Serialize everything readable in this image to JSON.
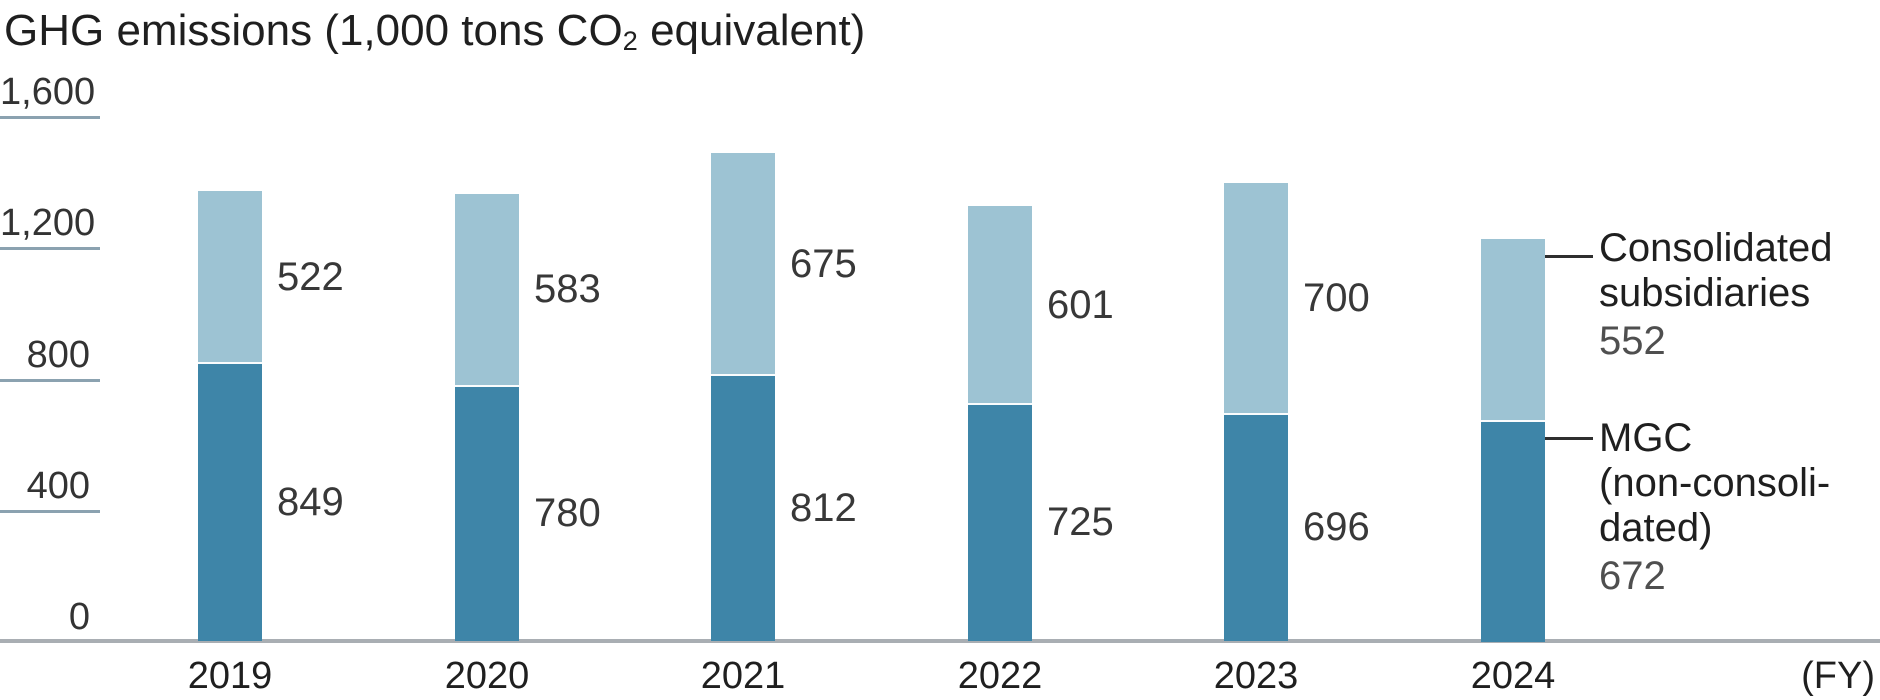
{
  "title": {
    "prefix": "GHG emissions (1,000 tons CO",
    "sub": "2",
    "suffix": " equivalent)"
  },
  "y_axis": {
    "ticks": [
      {
        "label": "1,600",
        "value": 1600
      },
      {
        "label": "1,200",
        "value": 1200
      },
      {
        "label": "800",
        "value": 800
      },
      {
        "label": "400",
        "value": 400
      },
      {
        "label": "0",
        "value": 0
      }
    ]
  },
  "x_axis": {
    "categories": [
      "2019",
      "2020",
      "2021",
      "2022",
      "2023",
      "2024"
    ],
    "unit_label": "(FY)"
  },
  "chart_data": {
    "type": "bar",
    "stacked": true,
    "title": "GHG emissions (1,000 tons CO2 equivalent)",
    "categories": [
      "2019",
      "2020",
      "2021",
      "2022",
      "2023",
      "2024"
    ],
    "series": [
      {
        "name": "MGC (non-consolidated)",
        "color": "#3e85a8",
        "values": [
          849,
          780,
          812,
          725,
          696,
          672
        ]
      },
      {
        "name": "Consolidated subsidiaries",
        "color": "#9dc3d3",
        "values": [
          522,
          583,
          675,
          601,
          700,
          552
        ]
      }
    ],
    "ylim": [
      0,
      1600
    ],
    "ylabel": "GHG emissions (1,000 tons CO2 equivalent)",
    "xlabel": "(FY)",
    "grid": "short tick underlines on y-axis only",
    "legend_position": "right of last bar, with leader lines",
    "note": "Inline value labels for 2019-2023; 2024 values shown in legend"
  },
  "legend": {
    "entries": [
      {
        "series": "Consolidated subsidiaries",
        "lines": [
          "Consolidated",
          "subsidiaries"
        ],
        "value": "552"
      },
      {
        "series": "MGC (non-consolidated)",
        "lines": [
          "MGC",
          "(non-consoli-",
          "dated)"
        ],
        "value": "672"
      }
    ]
  },
  "colors": {
    "series_dark": "#3e85a8",
    "series_light": "#9dc3d3",
    "tick_line": "#8ba2b0",
    "axis_line": "#a9aeb3",
    "text": "#1f1f1f"
  }
}
